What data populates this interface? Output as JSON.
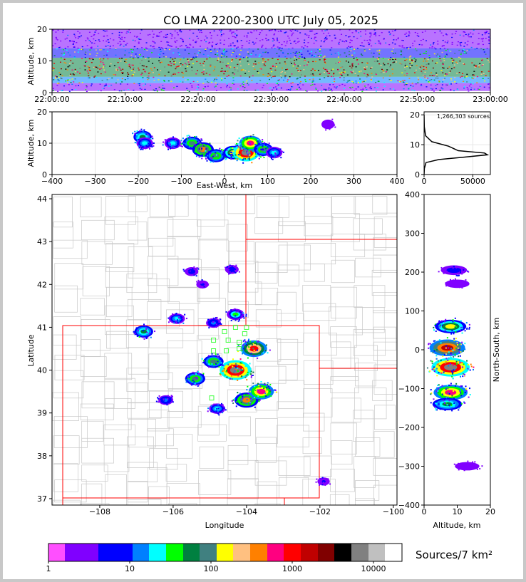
{
  "chart_data": [
    {
      "type": "heatmap",
      "id": "time-altitude",
      "title": "CO LMA 2200-2300 UTC July 05, 2025",
      "xlabel": "",
      "ylabel": "Altitude, km",
      "x_ticks": [
        "22:00:00",
        "22:10:00",
        "22:20:00",
        "22:30:00",
        "22:40:00",
        "22:50:00",
        "23:00:00"
      ],
      "y_ticks": [
        0,
        10,
        20
      ],
      "ylim": [
        0,
        20
      ],
      "bands": [
        {
          "from": 0.5,
          "to": 3.0,
          "level": 4
        },
        {
          "from": 3.0,
          "to": 5.0,
          "level": 9
        },
        {
          "from": 5.0,
          "to": 11.0,
          "level": 14
        },
        {
          "from": 11.0,
          "to": 14.0,
          "level": 7
        },
        {
          "from": 14.0,
          "to": 20.0,
          "level": 1
        }
      ]
    },
    {
      "type": "heatmap",
      "id": "ew-altitude",
      "xlabel": "East-West, km",
      "ylabel": "Altitude, km",
      "xlim": [
        -400,
        400
      ],
      "ylim": [
        0,
        20
      ],
      "x_ticks": [
        -400,
        -300,
        -200,
        -100,
        0,
        100,
        200,
        300,
        400
      ],
      "y_ticks": [
        0,
        10,
        20
      ],
      "cells": [
        {
          "x": -190,
          "y": 12,
          "level": 8
        },
        {
          "x": -185,
          "y": 10,
          "level": 6
        },
        {
          "x": -120,
          "y": 10,
          "level": 6
        },
        {
          "x": -75,
          "y": 10,
          "level": 9
        },
        {
          "x": -50,
          "y": 8,
          "level": 12
        },
        {
          "x": -20,
          "y": 6,
          "level": 9
        },
        {
          "x": 20,
          "y": 7,
          "level": 10
        },
        {
          "x": 50,
          "y": 7,
          "level": 18
        },
        {
          "x": 60,
          "y": 10,
          "level": 13
        },
        {
          "x": 90,
          "y": 8,
          "level": 9
        },
        {
          "x": 115,
          "y": 7,
          "level": 6
        },
        {
          "x": 240,
          "y": 16,
          "level": 2
        }
      ]
    },
    {
      "type": "line",
      "id": "altitude-histogram",
      "annotation": "1,266,303 sources",
      "x_ticks": [
        0,
        50000
      ],
      "y_ticks": [
        0,
        10,
        20
      ],
      "xlim": [
        0,
        68000
      ],
      "ylim": [
        0,
        21
      ],
      "x": [
        0,
        300,
        2000,
        15000,
        40000,
        65000,
        62000,
        35000,
        25000,
        8000,
        1500,
        200,
        0
      ],
      "y": [
        0,
        2,
        4,
        5,
        5.8,
        6.6,
        7.2,
        8,
        9.5,
        11,
        13,
        16,
        20
      ]
    },
    {
      "type": "heatmap",
      "id": "plan-view",
      "xlabel": "Longitude",
      "ylabel": "Latitude",
      "xlim": [
        -109.3,
        -99.9
      ],
      "ylim": [
        36.85,
        44.1
      ],
      "x_ticks": [
        -108,
        -106,
        -104,
        -102,
        -100
      ],
      "y_ticks": [
        37,
        38,
        39,
        40,
        41,
        42,
        43,
        44
      ],
      "x_tick_labels": [
        "−108",
        "−106",
        "−104",
        "−102",
        "−100"
      ],
      "cells": [
        {
          "lon": -106.8,
          "lat": 40.9,
          "level": 8
        },
        {
          "lon": -105.9,
          "lat": 41.2,
          "level": 6
        },
        {
          "lon": -104.3,
          "lat": 41.3,
          "level": 7
        },
        {
          "lon": -104.9,
          "lat": 41.1,
          "level": 5
        },
        {
          "lon": -105.4,
          "lat": 39.8,
          "level": 9
        },
        {
          "lon": -104.3,
          "lat": 40.0,
          "level": 18
        },
        {
          "lon": -103.8,
          "lat": 40.5,
          "level": 14
        },
        {
          "lon": -104.0,
          "lat": 39.3,
          "level": 12
        },
        {
          "lon": -103.6,
          "lat": 39.5,
          "level": 13
        },
        {
          "lon": -104.8,
          "lat": 39.1,
          "level": 6
        },
        {
          "lon": -105.5,
          "lat": 42.3,
          "level": 4
        },
        {
          "lon": -104.4,
          "lat": 42.35,
          "level": 4
        },
        {
          "lon": -105.2,
          "lat": 42.0,
          "level": 3
        },
        {
          "lon": -101.9,
          "lat": 37.4,
          "level": 3
        },
        {
          "lon": -106.2,
          "lat": 39.3,
          "level": 5
        },
        {
          "lon": -104.9,
          "lat": 40.2,
          "level": 9
        }
      ],
      "stations": [
        {
          "lon": -104.6,
          "lat": 40.9
        },
        {
          "lon": -104.3,
          "lat": 41.0
        },
        {
          "lon": -104.0,
          "lat": 41.0
        },
        {
          "lon": -104.9,
          "lat": 40.7
        },
        {
          "lon": -104.5,
          "lat": 40.7
        },
        {
          "lon": -104.2,
          "lat": 40.65
        },
        {
          "lon": -104.9,
          "lat": 40.45
        },
        {
          "lon": -104.55,
          "lat": 40.45
        },
        {
          "lon": -104.2,
          "lat": 40.5
        },
        {
          "lon": -104.95,
          "lat": 39.35
        },
        {
          "lon": -104.05,
          "lat": 40.85
        }
      ]
    },
    {
      "type": "heatmap",
      "id": "altitude-ns",
      "xlabel": "Altitude, km",
      "ylabel": "North-South, km",
      "xlim": [
        0,
        20
      ],
      "ylim": [
        -400,
        400
      ],
      "x_ticks": [
        0,
        10,
        20
      ],
      "y_ticks": [
        -400,
        -300,
        -200,
        -100,
        0,
        100,
        200,
        300,
        400
      ],
      "cells": [
        {
          "alt": 9,
          "ns": 205,
          "level": 4
        },
        {
          "alt": 10,
          "ns": 170,
          "level": 2
        },
        {
          "alt": 8,
          "ns": 60,
          "level": 10
        },
        {
          "alt": 7,
          "ns": 5,
          "level": 15
        },
        {
          "alt": 8,
          "ns": -45,
          "level": 18
        },
        {
          "alt": 8,
          "ns": -110,
          "level": 13
        },
        {
          "alt": 7,
          "ns": -140,
          "level": 8
        },
        {
          "alt": 13,
          "ns": -300,
          "level": 2
        }
      ]
    }
  ],
  "colorbar": {
    "label": "Sources/7 km²",
    "tick_labels": [
      "1",
      "10",
      "100",
      "1000",
      "10000"
    ],
    "colors": [
      "#ff4fff",
      "#8000ff",
      "#8000ff",
      "#0000ff",
      "#0000ff",
      "#0080ff",
      "#00ffff",
      "#00ff00",
      "#008040",
      "#408080",
      "#ffff00",
      "#ffc080",
      "#ff8000",
      "#ff0080",
      "#ff0000",
      "#c00000",
      "#800000",
      "#000000",
      "#808080",
      "#c0c0c0",
      "#ffffff"
    ]
  }
}
